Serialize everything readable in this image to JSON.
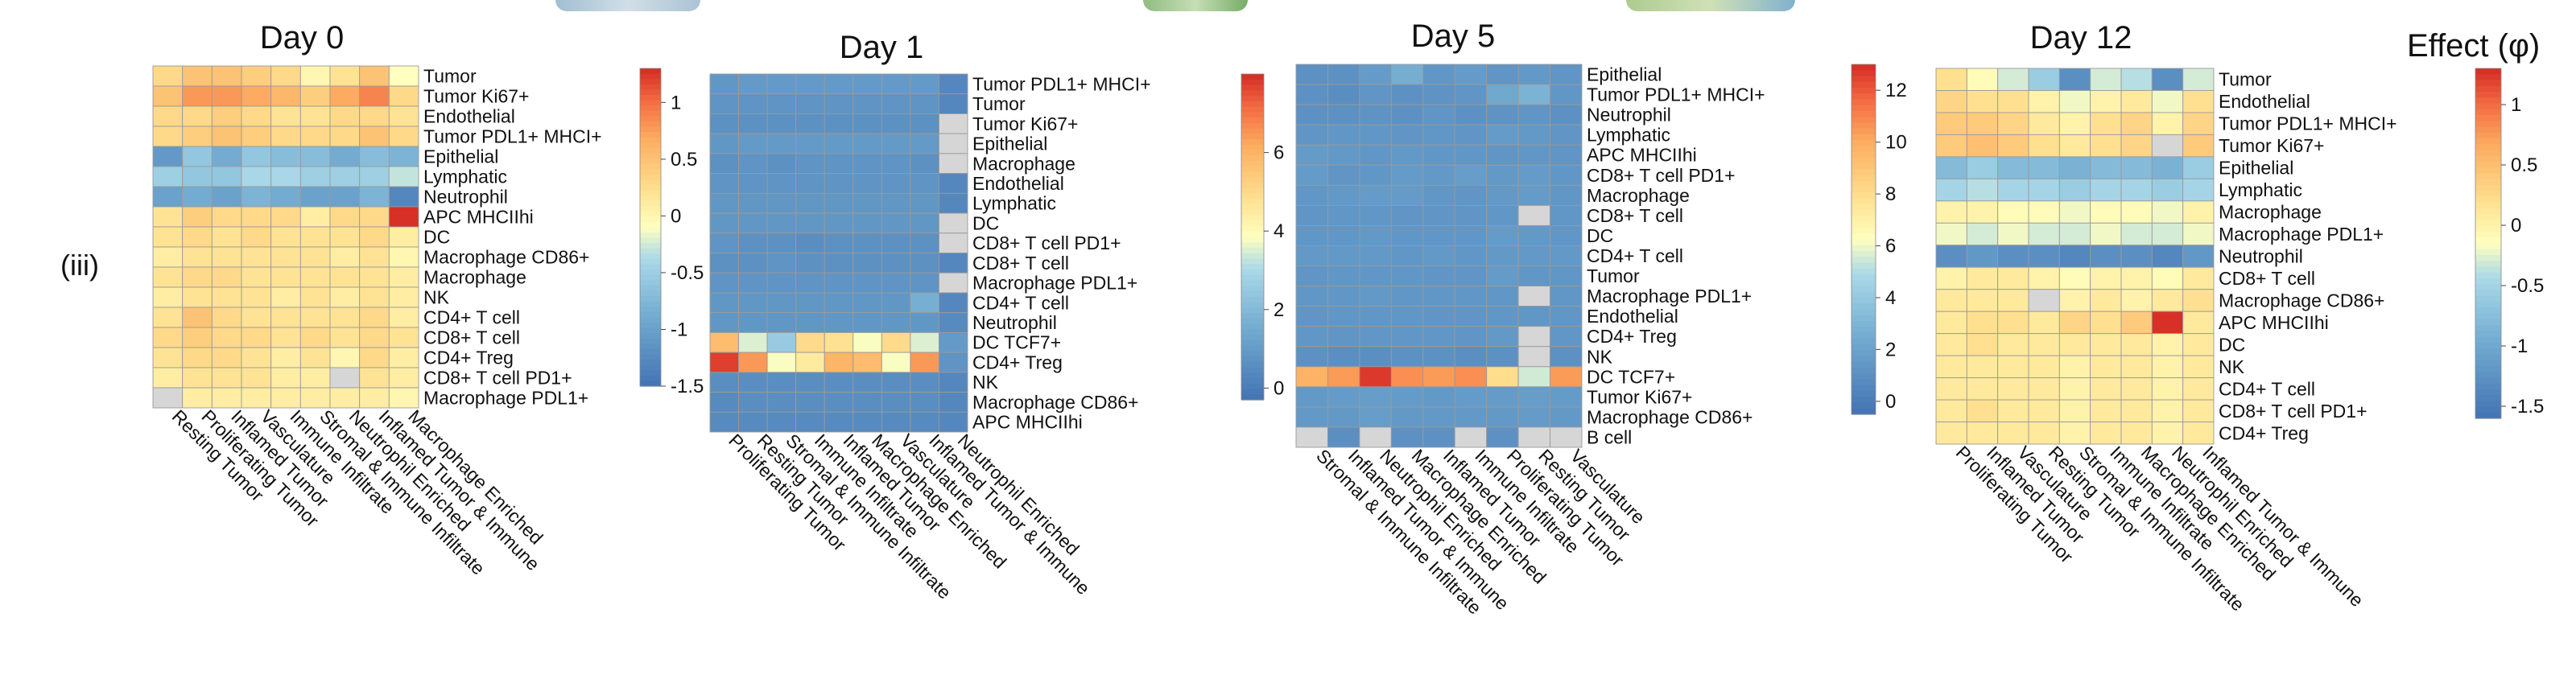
{
  "panel_label": "(iii)",
  "effect_label": "Effect (φ)",
  "chart_data": [
    {
      "type": "heatmap",
      "title": "Day 0",
      "rows": [
        "Tumor",
        "Tumor Ki67+",
        "Endothelial",
        "Tumor PDL1+ MHCI+",
        "Epithelial",
        "Lymphatic",
        "Neutrophil",
        "APC MHCIIhi",
        "DC",
        "Macrophage CD86+",
        "Macrophage",
        "NK",
        "CD4+ T cell",
        "CD8+ T cell",
        "CD4+ Treg",
        "CD8+ T cell PD1+",
        "Macrophage PDL1+"
      ],
      "columns": [
        "Resting Tumor",
        "Proliferating Tumor",
        "Inflamed Tumor",
        "Vasculature",
        "Immune Infiltrate",
        "Stromal & Immune Infiltrate",
        "Neutrophil Enriched",
        "Inflamed Tumor & Immune",
        "Macrophage Enriched"
      ],
      "values": [
        [
          0.3,
          0.5,
          0.5,
          0.4,
          0.3,
          0.0,
          0.2,
          0.5,
          -0.1
        ],
        [
          0.5,
          0.8,
          0.8,
          0.7,
          0.6,
          0.4,
          0.7,
          0.9,
          0.3
        ],
        [
          0.3,
          0.3,
          0.4,
          0.3,
          0.2,
          0.2,
          0.3,
          0.3,
          0.2
        ],
        [
          0.3,
          0.4,
          0.5,
          0.4,
          0.3,
          0.3,
          0.3,
          0.5,
          0.3
        ],
        [
          -1.1,
          -0.6,
          -0.9,
          -0.6,
          -0.7,
          -0.7,
          -0.9,
          -0.7,
          -0.8
        ],
        [
          -0.5,
          -0.6,
          -0.6,
          -0.4,
          -0.4,
          -0.5,
          -0.5,
          -0.5,
          -0.3
        ],
        [
          -1.0,
          -0.9,
          -1.0,
          -0.8,
          -0.9,
          -1.0,
          -1.0,
          -0.8,
          -1.3
        ],
        [
          0.2,
          0.4,
          0.3,
          0.3,
          0.3,
          0.1,
          0.3,
          0.3,
          1.3
        ],
        [
          0.2,
          0.3,
          0.2,
          0.3,
          0.2,
          0.2,
          0.2,
          0.3,
          0.1
        ],
        [
          0.1,
          0.2,
          0.2,
          0.2,
          0.2,
          0.2,
          0.1,
          0.2,
          0.0
        ],
        [
          0.2,
          0.3,
          0.3,
          0.2,
          0.2,
          0.2,
          0.2,
          0.2,
          0.1
        ],
        [
          0.1,
          0.2,
          0.2,
          0.2,
          0.1,
          0.2,
          0.1,
          0.2,
          0.1
        ],
        [
          0.2,
          0.5,
          0.3,
          0.2,
          0.2,
          0.2,
          0.2,
          0.3,
          0.1
        ],
        [
          0.3,
          0.4,
          0.3,
          0.3,
          0.2,
          0.3,
          0.2,
          0.3,
          0.2
        ],
        [
          0.2,
          0.3,
          0.3,
          0.2,
          0.1,
          0.2,
          0.0,
          0.3,
          0.1
        ],
        [
          0.1,
          0.2,
          0.2,
          0.2,
          0.1,
          0.1,
          null,
          0.2,
          0.1
        ],
        [
          null,
          0.1,
          0.1,
          0.1,
          0.1,
          0.1,
          0.1,
          0.1,
          0.0
        ]
      ],
      "colorbar": {
        "min": -1.5,
        "max": 1.3,
        "ticks": [
          1,
          0.5,
          0,
          -0.5,
          -1,
          -1.5
        ]
      }
    },
    {
      "type": "heatmap",
      "title": "Day 1",
      "rows": [
        "Tumor PDL1+ MHCI+",
        "Tumor",
        "Tumor Ki67+",
        "Epithelial",
        "Macrophage",
        "Endothelial",
        "Lymphatic",
        "DC",
        "CD8+ T cell PD1+",
        "CD8+ T cell",
        "Macrophage PDL1+",
        "CD4+ T cell",
        "Neutrophil",
        "DC TCF7+",
        "CD4+ Treg",
        "NK",
        "Macrophage CD86+",
        "APC MHCIIhi"
      ],
      "columns": [
        "Proliferating Tumor",
        "Resting Tumor",
        "Stromal & Immune Infiltrate",
        "Immune Infiltrate",
        "Inflamed Tumor",
        "Macrophage Enriched",
        "Vasculature",
        "Inflamed Tumor & Immune",
        "Neutrophil Enriched"
      ],
      "values": [
        [
          0.8,
          0.9,
          0.9,
          0.9,
          0.9,
          0.9,
          0.9,
          0.9,
          0.3
        ],
        [
          0.7,
          0.7,
          0.7,
          0.7,
          0.7,
          0.7,
          0.7,
          0.7,
          0.3
        ],
        [
          0.6,
          0.6,
          0.6,
          0.6,
          0.6,
          0.6,
          0.6,
          0.6,
          null
        ],
        [
          0.8,
          0.9,
          0.9,
          0.9,
          0.9,
          0.9,
          0.9,
          0.9,
          null
        ],
        [
          0.6,
          0.7,
          0.6,
          0.7,
          0.7,
          0.7,
          0.7,
          0.6,
          null
        ],
        [
          0.7,
          0.7,
          0.7,
          0.7,
          0.7,
          0.7,
          0.7,
          0.7,
          0.3
        ],
        [
          0.8,
          0.8,
          0.8,
          0.8,
          0.8,
          0.8,
          0.8,
          0.8,
          0.3
        ],
        [
          0.8,
          0.8,
          0.8,
          0.8,
          0.8,
          0.8,
          0.8,
          0.8,
          null
        ],
        [
          0.7,
          0.6,
          0.6,
          0.5,
          0.6,
          0.6,
          0.6,
          0.6,
          null
        ],
        [
          0.6,
          0.6,
          0.7,
          0.6,
          0.6,
          0.6,
          0.6,
          0.6,
          0.3
        ],
        [
          0.7,
          0.7,
          0.7,
          0.7,
          0.7,
          0.7,
          0.7,
          0.7,
          null
        ],
        [
          0.8,
          0.8,
          0.8,
          0.8,
          0.8,
          0.8,
          0.8,
          1.6,
          0.3
        ],
        [
          0.8,
          0.8,
          0.8,
          0.8,
          0.8,
          0.8,
          0.8,
          0.8,
          0.4
        ],
        [
          5.8,
          3.5,
          2.5,
          5.0,
          4.8,
          3.8,
          5.0,
          3.5,
          0.9
        ],
        [
          7.8,
          6.5,
          3.8,
          4.5,
          6.0,
          5.8,
          3.8,
          6.5,
          0.7
        ],
        [
          0.5,
          0.5,
          0.5,
          0.5,
          0.5,
          0.5,
          0.5,
          0.5,
          0.3
        ],
        [
          0.4,
          0.5,
          0.5,
          0.5,
          0.5,
          0.5,
          0.5,
          0.5,
          0.3
        ],
        [
          0.4,
          0.4,
          0.4,
          0.4,
          0.4,
          0.4,
          0.4,
          0.4,
          0.3
        ]
      ],
      "colorbar": {
        "min": -0.3,
        "max": 8,
        "ticks": [
          6,
          4,
          2,
          0
        ]
      }
    },
    {
      "type": "heatmap",
      "title": "Day 5",
      "rows": [
        "Epithelial",
        "Tumor PDL1+ MHCI+",
        "Neutrophil",
        "Lymphatic",
        "APC MHCIIhi",
        "CD8+ T cell PD1+",
        "Macrophage",
        "CD8+ T cell",
        "DC",
        "CD4+ T cell",
        "Tumor",
        "Macrophage PDL1+",
        "Endothelial",
        "CD4+ Treg",
        "NK",
        "DC TCF7+",
        "Tumor Ki67+",
        "Macrophage CD86+",
        "B cell"
      ],
      "columns": [
        "Stromal & Immune Infiltrate",
        "Inflamed Tumor & Immune",
        "Neutrophil Enriched",
        "Macrophage Enriched",
        "Inflamed Tumor",
        "Immune Infiltrate",
        "Proliferating Tumor",
        "Resting Tumor",
        "Vasculature"
      ],
      "values": [
        [
          1.0,
          1.0,
          1.5,
          2.5,
          1.3,
          1.5,
          1.2,
          1.4,
          1.2
        ],
        [
          1.0,
          0.8,
          1.2,
          1.0,
          1.1,
          1.2,
          2.2,
          2.8,
          1.3
        ],
        [
          1.0,
          1.0,
          1.1,
          1.0,
          1.2,
          1.0,
          1.1,
          1.2,
          1.0
        ],
        [
          1.2,
          1.3,
          1.3,
          1.2,
          1.3,
          1.2,
          1.5,
          1.4,
          1.2
        ],
        [
          1.5,
          1.4,
          1.3,
          1.4,
          1.3,
          1.3,
          1.2,
          1.3,
          1.2
        ],
        [
          1.5,
          1.2,
          1.3,
          1.5,
          1.4,
          1.6,
          1.4,
          1.5,
          1.3
        ],
        [
          1.3,
          1.4,
          1.5,
          1.5,
          1.3,
          1.2,
          1.4,
          1.5,
          1.3
        ],
        [
          1.2,
          1.3,
          1.3,
          1.2,
          1.2,
          1.2,
          1.3,
          null,
          1.3
        ],
        [
          1.3,
          1.3,
          1.4,
          1.3,
          1.3,
          1.3,
          1.5,
          1.4,
          1.3
        ],
        [
          1.4,
          1.4,
          1.4,
          1.3,
          1.4,
          1.3,
          1.4,
          1.4,
          1.4
        ],
        [
          1.2,
          1.3,
          1.3,
          1.3,
          1.2,
          1.2,
          1.5,
          1.3,
          1.3
        ],
        [
          1.3,
          1.3,
          1.4,
          1.3,
          1.3,
          1.3,
          1.3,
          null,
          1.3
        ],
        [
          1.2,
          1.3,
          1.3,
          1.3,
          1.2,
          1.2,
          1.3,
          1.3,
          1.3
        ],
        [
          1.3,
          1.2,
          1.3,
          1.3,
          1.3,
          1.2,
          1.4,
          null,
          1.3
        ],
        [
          1.0,
          0.9,
          0.9,
          1.0,
          1.0,
          0.9,
          1.0,
          null,
          1.0
        ],
        [
          9.8,
          10.5,
          12.8,
          10.8,
          10.5,
          10.8,
          8.0,
          5.5,
          10.5
        ],
        [
          1.4,
          1.5,
          1.6,
          1.5,
          1.4,
          1.5,
          1.5,
          1.6,
          1.5
        ],
        [
          1.4,
          1.4,
          1.6,
          1.4,
          1.4,
          1.4,
          1.4,
          1.5,
          1.4
        ],
        [
          null,
          0.9,
          null,
          1.0,
          1.0,
          null,
          1.0,
          null,
          null
        ]
      ],
      "colorbar": {
        "min": -0.5,
        "max": 13,
        "ticks": [
          12,
          10,
          8,
          6,
          4,
          2,
          0
        ]
      }
    },
    {
      "type": "heatmap",
      "title": "Day 12",
      "rows": [
        "Tumor",
        "Endothelial",
        "Tumor PDL1+ MHCI+",
        "Tumor Ki67+",
        "Epithelial",
        "Lymphatic",
        "Macrophage",
        "Macrophage PDL1+",
        "Neutrophil",
        "CD8+ T cell",
        "Macrophage CD86+",
        "APC MHCIIhi",
        "DC",
        "NK",
        "CD4+ T cell",
        "CD8+ T cell PD1+",
        "CD4+ Treg"
      ],
      "columns": [
        "Proliferating Tumor",
        "Inflamed Tumor",
        "Vasculature",
        "Resting Tumor",
        "Stromal & Immune Infiltrate",
        "Immune Infiltrate",
        "Macrophage Enriched",
        "Neutrophil Enriched",
        "Inflamed Tumor & Immune"
      ],
      "values": [
        [
          0.2,
          -0.1,
          -0.3,
          -0.6,
          -1.3,
          -0.3,
          -0.4,
          -1.3,
          -0.3
        ],
        [
          0.3,
          0.2,
          0.2,
          0.0,
          -0.2,
          0.0,
          0.1,
          -0.2,
          0.2
        ],
        [
          0.4,
          0.4,
          0.3,
          0.1,
          0.0,
          0.2,
          0.3,
          0.0,
          0.3
        ],
        [
          0.4,
          0.5,
          0.4,
          0.2,
          0.1,
          0.2,
          0.3,
          null,
          0.4
        ],
        [
          -0.8,
          -0.6,
          -0.8,
          -0.8,
          -0.9,
          -0.8,
          -0.8,
          -0.9,
          -0.6
        ],
        [
          -0.5,
          -0.4,
          -0.5,
          -0.5,
          -0.6,
          -0.5,
          -0.5,
          -0.6,
          -0.5
        ],
        [
          0.0,
          0.0,
          -0.1,
          -0.1,
          -0.2,
          -0.1,
          -0.1,
          -0.2,
          0.0
        ],
        [
          -0.2,
          -0.3,
          -0.2,
          -0.3,
          -0.3,
          -0.2,
          -0.3,
          -0.3,
          -0.2
        ],
        [
          -1.3,
          -1.2,
          -1.3,
          -1.3,
          -1.4,
          -1.3,
          -1.3,
          -1.4,
          -1.2
        ],
        [
          0.0,
          0.1,
          0.1,
          0.0,
          -0.1,
          0.0,
          0.0,
          -0.1,
          0.1
        ],
        [
          0.1,
          0.1,
          0.1,
          null,
          0.0,
          0.1,
          0.0,
          0.1,
          0.2
        ],
        [
          0.1,
          0.2,
          0.2,
          0.1,
          0.3,
          0.2,
          0.4,
          1.3,
          0.1
        ],
        [
          0.1,
          0.2,
          0.1,
          0.1,
          0.1,
          0.1,
          0.1,
          0.0,
          0.1
        ],
        [
          0.1,
          0.1,
          0.1,
          0.1,
          0.0,
          0.1,
          0.1,
          0.0,
          0.1
        ],
        [
          0.1,
          0.1,
          0.1,
          0.1,
          0.0,
          0.1,
          0.1,
          0.0,
          0.1
        ],
        [
          0.1,
          0.2,
          0.1,
          0.1,
          0.0,
          0.1,
          0.1,
          0.0,
          0.1
        ],
        [
          0.1,
          0.1,
          0.1,
          0.1,
          0.0,
          0.1,
          0.1,
          0.0,
          0.1
        ]
      ],
      "colorbar": {
        "min": -1.6,
        "max": 1.3,
        "ticks": [
          1,
          0.5,
          0,
          -0.5,
          -1,
          -1.5
        ]
      }
    }
  ]
}
